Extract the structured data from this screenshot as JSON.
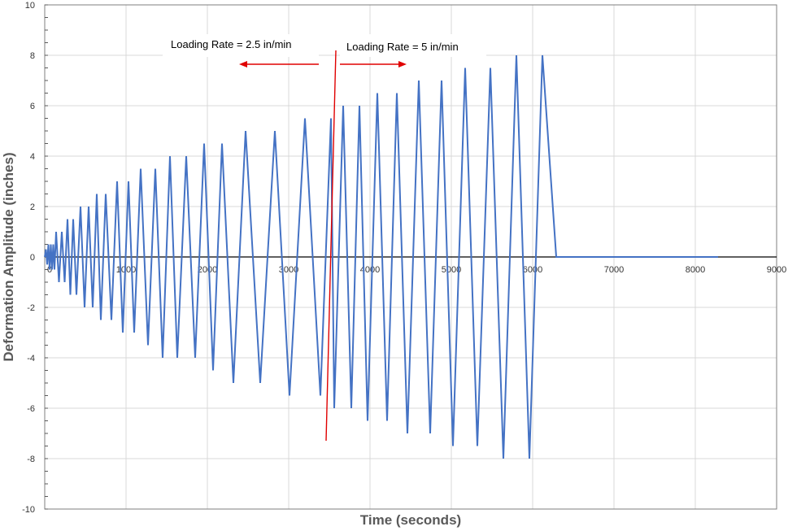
{
  "chart_data": {
    "type": "line",
    "xlabel": "Time (seconds)",
    "ylabel": "Deformation Amplitude (inches)",
    "xlim": [
      0,
      9000
    ],
    "ylim": [
      -10,
      10
    ],
    "x_ticks": [
      0,
      1000,
      2000,
      3000,
      4000,
      5000,
      6000,
      7000,
      8000,
      9000
    ],
    "y_ticks": [
      -10,
      -8,
      -6,
      -4,
      -2,
      0,
      2,
      4,
      6,
      8,
      10
    ],
    "grid": true,
    "series": [
      {
        "color": "#4472C4",
        "x": [
          0,
          15,
          30,
          45,
          60,
          75,
          90,
          105,
          120,
          140,
          175,
          210,
          245,
          280,
          315,
          350,
          390,
          440,
          490,
          540,
          590,
          640,
          690,
          750,
          820,
          890,
          960,
          1030,
          1100,
          1180,
          1270,
          1360,
          1450,
          1540,
          1630,
          1740,
          1850,
          1960,
          2070,
          2180,
          2320,
          2470,
          2650,
          2830,
          3010,
          3200,
          3390,
          3520,
          3560,
          3670,
          3770,
          3870,
          3970,
          4090,
          4210,
          4330,
          4460,
          4600,
          4740,
          4880,
          5020,
          5170,
          5320,
          5480,
          5640,
          5800,
          5960,
          6120,
          6290,
          6460,
          6630,
          6800,
          6980,
          7160,
          7340,
          7520,
          7710,
          7900,
          8090,
          8280
        ],
        "y": [
          0,
          0.3,
          -0.3,
          0.5,
          -0.5,
          0.5,
          -0.5,
          0.5,
          -0.5,
          1,
          -1,
          1,
          -1,
          1.5,
          -1.5,
          1.5,
          -1.5,
          2,
          -2,
          2,
          -2,
          2.5,
          -2.5,
          2.5,
          -2.5,
          3,
          -3,
          3,
          -3,
          3.5,
          -3.5,
          3.5,
          -4,
          4,
          -4,
          4,
          -4,
          4.5,
          -4.5,
          4.5,
          -5,
          5,
          -5,
          5,
          -5.5,
          5.5,
          -5.5,
          5.5,
          -6,
          6,
          -6,
          6,
          -6.5,
          6.5,
          -6.5,
          6.5,
          -7,
          7,
          -7,
          7,
          -7.5,
          7.5,
          -7.5,
          7.5,
          -8,
          8,
          -8,
          8,
          0,
          0,
          0,
          0,
          0,
          0,
          0,
          0,
          0,
          0,
          0,
          0
        ]
      }
    ],
    "annotations": [
      {
        "text": "Loading Rate = 2.5 in/min",
        "arrow": "left"
      },
      {
        "text": "Loading Rate = 5 in/min",
        "arrow": "right"
      }
    ],
    "divider": {
      "x": 3520,
      "color": "#E00000"
    },
    "annotation_color": "#E00000"
  }
}
